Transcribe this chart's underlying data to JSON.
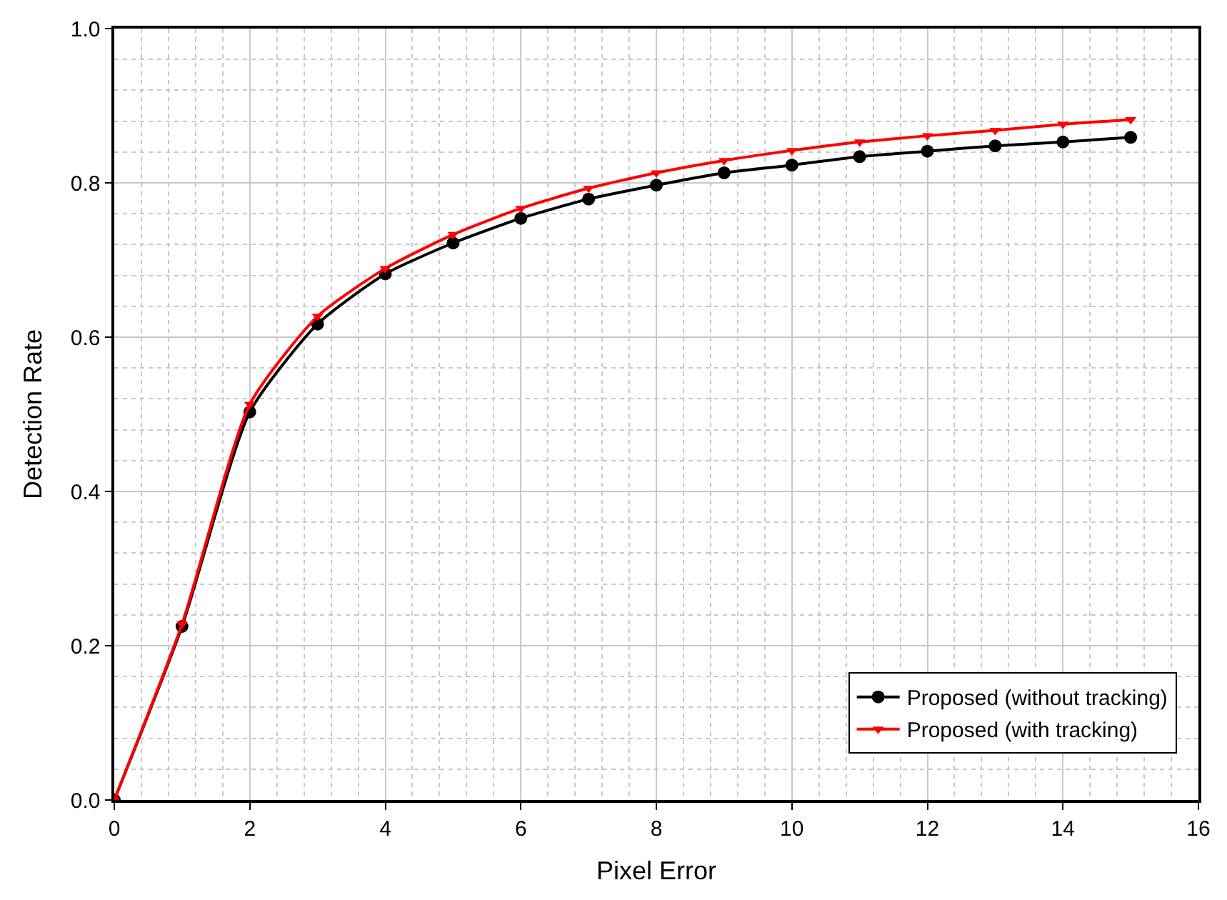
{
  "chart_data": {
    "type": "line",
    "xlabel": "Pixel Error",
    "ylabel": "Detection Rate",
    "x": [
      0,
      1,
      2,
      3,
      4,
      5,
      6,
      7,
      8,
      9,
      10,
      11,
      12,
      13,
      14,
      15
    ],
    "series": [
      {
        "name": "Proposed (without tracking)",
        "color": "#000000",
        "marker": "circle",
        "values": [
          0.0,
          0.225,
          0.503,
          0.617,
          0.682,
          0.722,
          0.754,
          0.779,
          0.797,
          0.813,
          0.823,
          0.834,
          0.841,
          0.848,
          0.853,
          0.859
        ]
      },
      {
        "name": "Proposed (with tracking)",
        "color": "#ff0000",
        "marker": "triangle",
        "values": [
          0.0,
          0.228,
          0.513,
          0.627,
          0.689,
          0.733,
          0.767,
          0.793,
          0.813,
          0.829,
          0.842,
          0.853,
          0.861,
          0.868,
          0.876,
          0.882
        ]
      }
    ],
    "xlim": [
      0,
      16
    ],
    "xticks": [
      0,
      2,
      4,
      6,
      8,
      10,
      12,
      14,
      16
    ],
    "ylim": [
      0,
      1
    ],
    "yticks": [
      {
        "value": 0,
        "label": "0.0"
      },
      {
        "value": 0.2,
        "label": "0.2"
      },
      {
        "value": 0.4,
        "label": "0.4"
      },
      {
        "value": 0.6,
        "label": "0.6"
      },
      {
        "value": 0.8,
        "label": "0.8"
      },
      {
        "value": 1,
        "label": "1.0"
      }
    ],
    "grid": true,
    "legend": "bottom right",
    "line_style": "solid"
  }
}
